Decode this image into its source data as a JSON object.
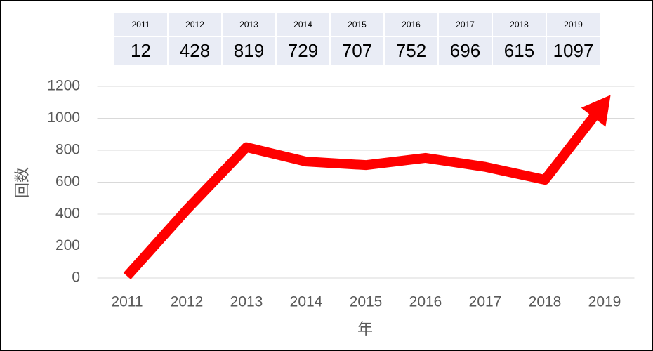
{
  "chart_data": {
    "type": "line",
    "categories": [
      "2011",
      "2012",
      "2013",
      "2014",
      "2015",
      "2016",
      "2017",
      "2018",
      "2019"
    ],
    "values": [
      12,
      428,
      819,
      729,
      707,
      752,
      696,
      615,
      1097
    ],
    "color": "#ff0000",
    "ylim": [
      0,
      1200
    ],
    "yticks": [
      0,
      200,
      400,
      600,
      800,
      1000,
      1200
    ],
    "grid": true,
    "ylabel": "回数",
    "xlabel": "年"
  }
}
